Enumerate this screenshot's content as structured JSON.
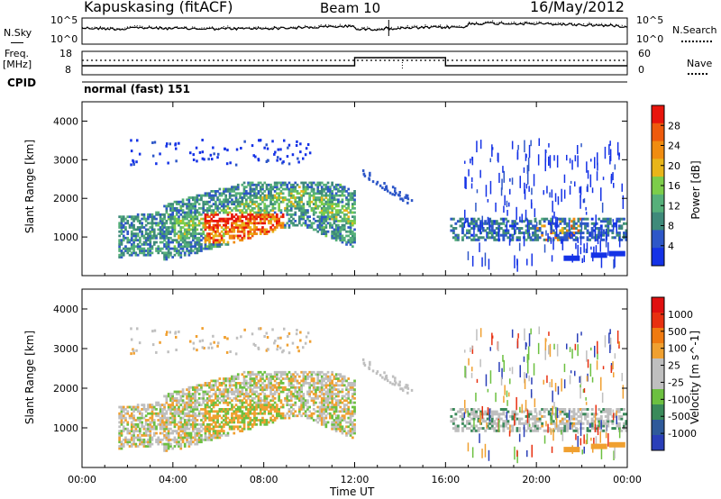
{
  "header": {
    "station": "Kapuskasing (fitACF)",
    "beam": "Beam 10",
    "date": "16/May/2012"
  },
  "strip_labels": {
    "nsky": "N.Sky",
    "nsearch": "N.Search",
    "freq_line1": "Freq.",
    "freq_line2": "[MHz]",
    "nave": "Nave",
    "cpid": "CPID",
    "cpid_value": "normal (fast) 151",
    "noise_tick_top": "10^5",
    "noise_tick_bottom": "10^0",
    "freq_ticks": [
      "18",
      "8"
    ],
    "nave_ticks": [
      "60",
      "0"
    ]
  },
  "colors": {
    "power_scale": [
      "#1432e6",
      "#2e57c8",
      "#3f8a7a",
      "#56b07a",
      "#7ccd4a",
      "#e8b51a",
      "#f08c10",
      "#ee5a0c",
      "#e8150c"
    ],
    "velocity_scale": [
      "#2a3fb8",
      "#2f5a9a",
      "#3a8a5a",
      "#6cc040",
      "#bfbfbf",
      "#bfbfbf",
      "#f0a030",
      "#f07a10",
      "#e83010",
      "#e01010"
    ]
  },
  "chart_data": [
    {
      "type": "heatmap",
      "name": "power",
      "xlabel": "Time UT",
      "ylabel": "Slant Range [km]",
      "xlim": [
        0,
        24
      ],
      "ylim": [
        0,
        4500
      ],
      "x_tick_labels": [
        "00:00",
        "04:00",
        "08:00",
        "12:00",
        "16:00",
        "20:00",
        "00:00"
      ],
      "y_ticks": [
        1000,
        2000,
        3000,
        4000
      ],
      "colorbar_label": "Power [dB]",
      "colorbar_ticks": [
        4,
        8,
        12,
        16,
        20,
        24,
        28
      ],
      "colorbar_range": [
        0,
        30
      ]
    },
    {
      "type": "heatmap",
      "name": "velocity",
      "xlabel": "Time UT",
      "ylabel": "Slant Range [km]",
      "xlim": [
        0,
        24
      ],
      "ylim": [
        0,
        4500
      ],
      "x_tick_labels": [
        "00:00",
        "04:00",
        "08:00",
        "12:00",
        "16:00",
        "20:00",
        "00:00"
      ],
      "y_ticks": [
        1000,
        2000,
        3000,
        4000
      ],
      "colorbar_label": "Velocity [m s^-1]",
      "colorbar_ticks": [
        "-1000",
        "-500",
        "-100",
        "-25",
        "25",
        "100",
        "500",
        "1000"
      ]
    }
  ]
}
